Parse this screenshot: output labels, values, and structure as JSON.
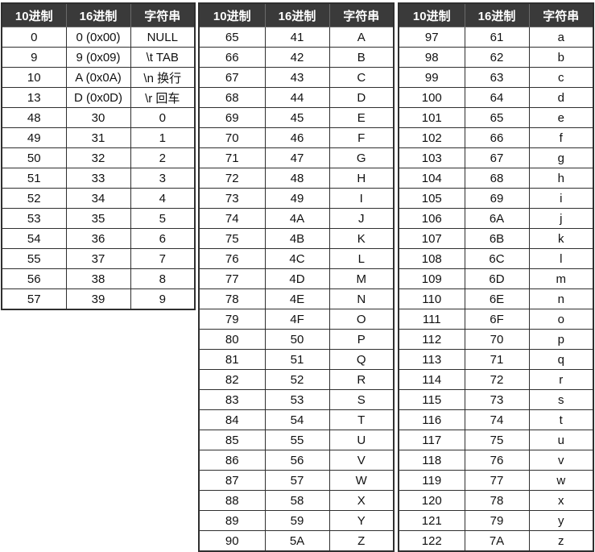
{
  "headers": [
    "10进制",
    "16进制",
    "字符串"
  ],
  "tables": [
    {
      "rows": [
        [
          "0",
          "0 (0x00)",
          "NULL"
        ],
        [
          "9",
          "9 (0x09)",
          "\\t TAB"
        ],
        [
          "10",
          "A (0x0A)",
          "\\n 换行"
        ],
        [
          "13",
          "D (0x0D)",
          "\\r 回车"
        ],
        [
          "48",
          "30",
          "0"
        ],
        [
          "49",
          "31",
          "1"
        ],
        [
          "50",
          "32",
          "2"
        ],
        [
          "51",
          "33",
          "3"
        ],
        [
          "52",
          "34",
          "4"
        ],
        [
          "53",
          "35",
          "5"
        ],
        [
          "54",
          "36",
          "6"
        ],
        [
          "55",
          "37",
          "7"
        ],
        [
          "56",
          "38",
          "8"
        ],
        [
          "57",
          "39",
          "9"
        ]
      ]
    },
    {
      "rows": [
        [
          "65",
          "41",
          "A"
        ],
        [
          "66",
          "42",
          "B"
        ],
        [
          "67",
          "43",
          "C"
        ],
        [
          "68",
          "44",
          "D"
        ],
        [
          "69",
          "45",
          "E"
        ],
        [
          "70",
          "46",
          "F"
        ],
        [
          "71",
          "47",
          "G"
        ],
        [
          "72",
          "48",
          "H"
        ],
        [
          "73",
          "49",
          "I"
        ],
        [
          "74",
          "4A",
          "J"
        ],
        [
          "75",
          "4B",
          "K"
        ],
        [
          "76",
          "4C",
          "L"
        ],
        [
          "77",
          "4D",
          "M"
        ],
        [
          "78",
          "4E",
          "N"
        ],
        [
          "79",
          "4F",
          "O"
        ],
        [
          "80",
          "50",
          "P"
        ],
        [
          "81",
          "51",
          "Q"
        ],
        [
          "82",
          "52",
          "R"
        ],
        [
          "83",
          "53",
          "S"
        ],
        [
          "84",
          "54",
          "T"
        ],
        [
          "85",
          "55",
          "U"
        ],
        [
          "86",
          "56",
          "V"
        ],
        [
          "87",
          "57",
          "W"
        ],
        [
          "88",
          "58",
          "X"
        ],
        [
          "89",
          "59",
          "Y"
        ],
        [
          "90",
          "5A",
          "Z"
        ]
      ]
    },
    {
      "rows": [
        [
          "97",
          "61",
          "a"
        ],
        [
          "98",
          "62",
          "b"
        ],
        [
          "99",
          "63",
          "c"
        ],
        [
          "100",
          "64",
          "d"
        ],
        [
          "101",
          "65",
          "e"
        ],
        [
          "102",
          "66",
          "f"
        ],
        [
          "103",
          "67",
          "g"
        ],
        [
          "104",
          "68",
          "h"
        ],
        [
          "105",
          "69",
          "i"
        ],
        [
          "106",
          "6A",
          "j"
        ],
        [
          "107",
          "6B",
          "k"
        ],
        [
          "108",
          "6C",
          "l"
        ],
        [
          "109",
          "6D",
          "m"
        ],
        [
          "110",
          "6E",
          "n"
        ],
        [
          "111",
          "6F",
          "o"
        ],
        [
          "112",
          "70",
          "p"
        ],
        [
          "113",
          "71",
          "q"
        ],
        [
          "114",
          "72",
          "r"
        ],
        [
          "115",
          "73",
          "s"
        ],
        [
          "116",
          "74",
          "t"
        ],
        [
          "117",
          "75",
          "u"
        ],
        [
          "118",
          "76",
          "v"
        ],
        [
          "119",
          "77",
          "w"
        ],
        [
          "120",
          "78",
          "x"
        ],
        [
          "121",
          "79",
          "y"
        ],
        [
          "122",
          "7A",
          "z"
        ]
      ]
    }
  ]
}
